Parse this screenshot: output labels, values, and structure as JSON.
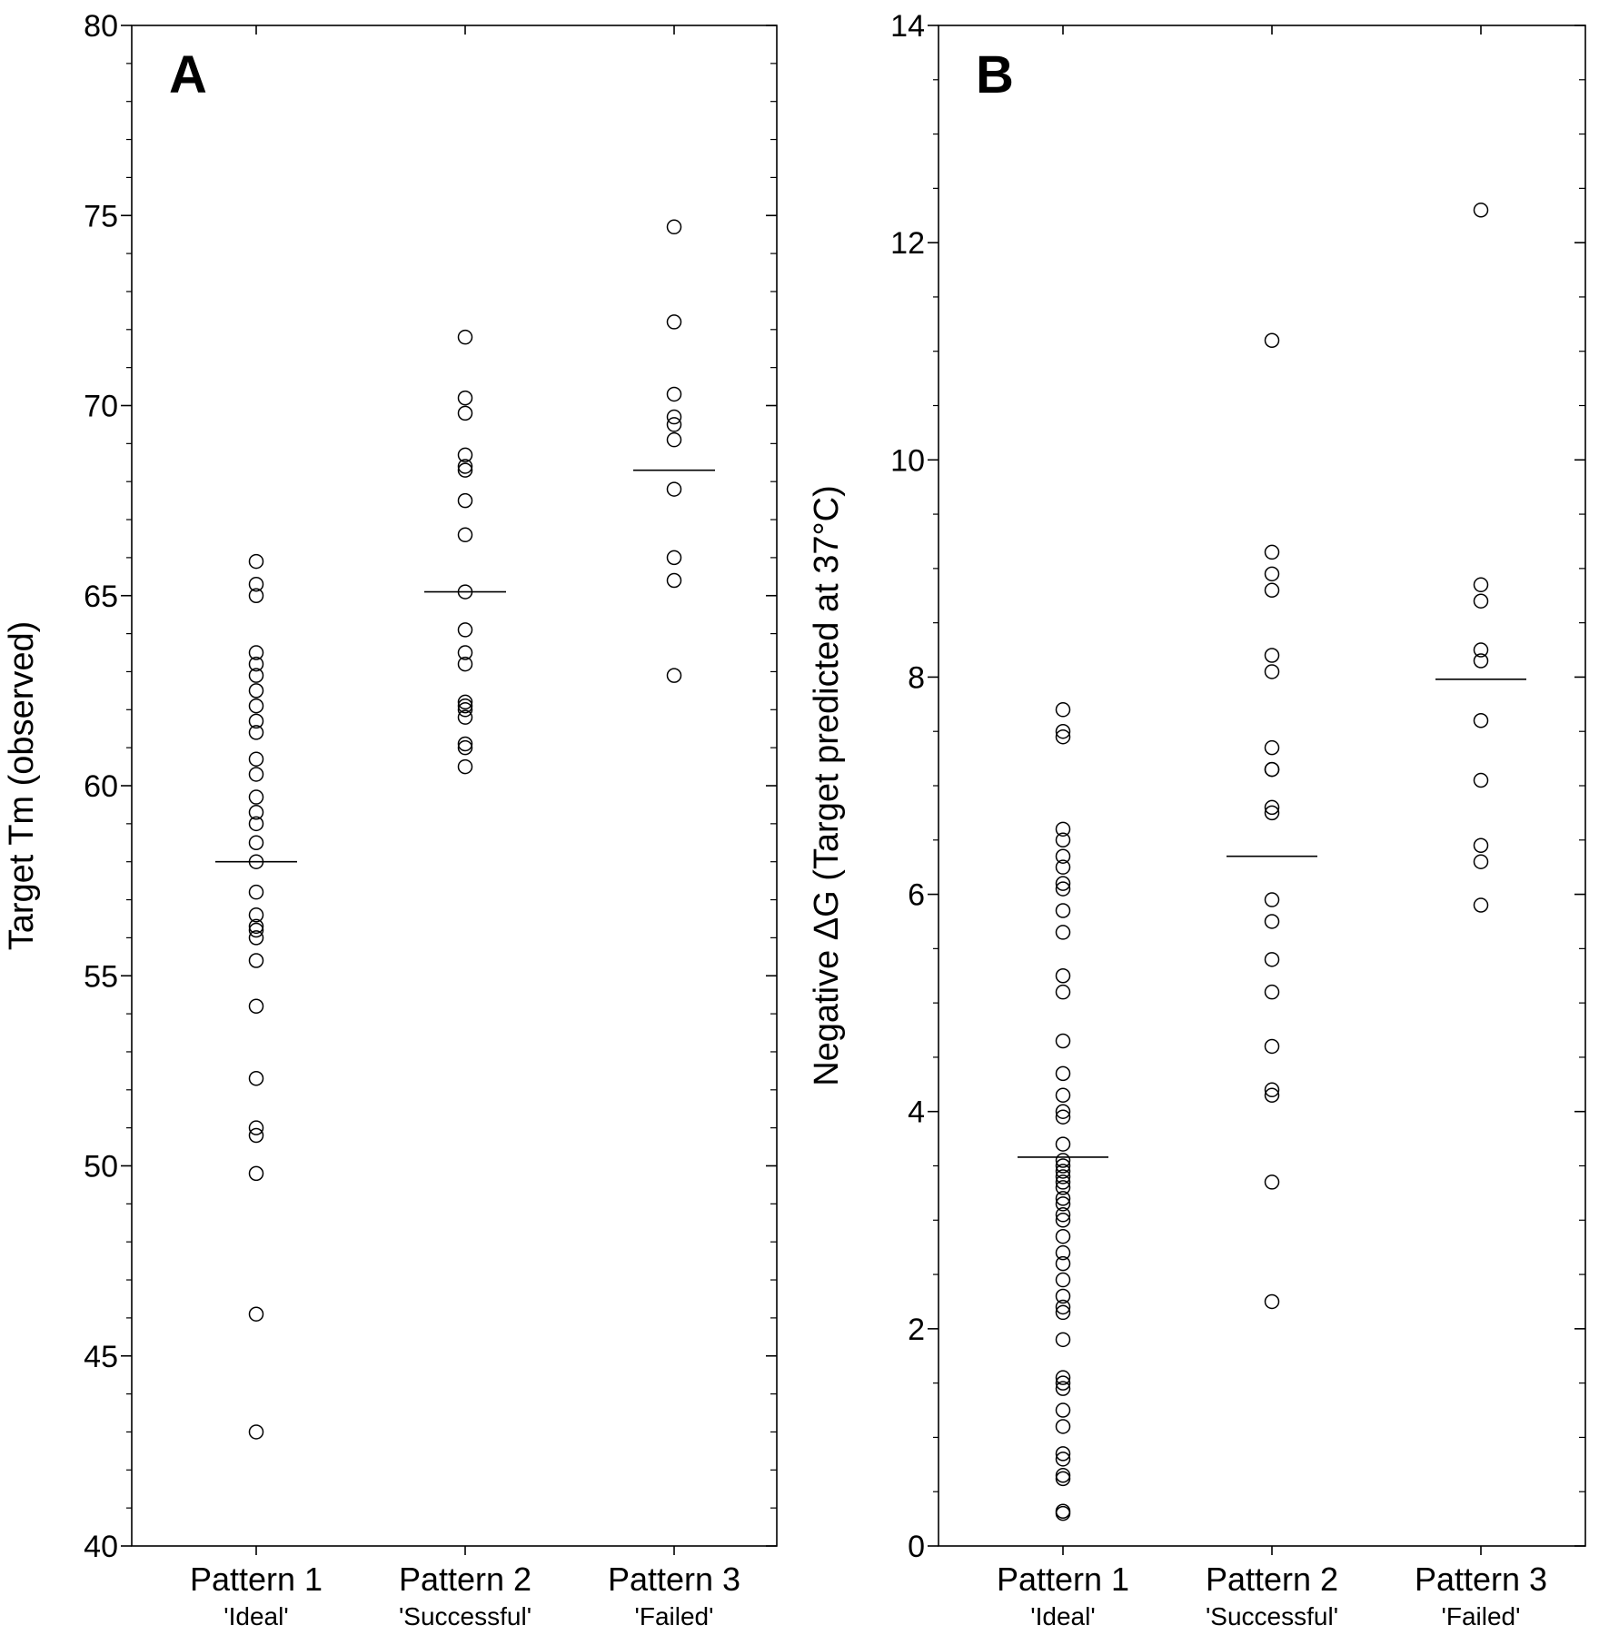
{
  "chart_data": [
    {
      "type": "scatter",
      "panel_label": "A",
      "ylabel": "Target Tm (observed)",
      "ylim": [
        40,
        80
      ],
      "yticks": [
        "40",
        "45",
        "50",
        "55",
        "60",
        "65",
        "70",
        "75",
        "80"
      ],
      "grid": false,
      "categories": [
        {
          "name": "Pattern 1",
          "sub": "'Ideal'"
        },
        {
          "name": "Pattern 2",
          "sub": "'Successful'"
        },
        {
          "name": "Pattern 3",
          "sub": "'Failed'"
        }
      ],
      "series": [
        {
          "values": [
            65.9,
            65.3,
            65.0,
            63.5,
            63.2,
            62.9,
            62.5,
            62.1,
            61.7,
            61.4,
            60.7,
            60.3,
            59.7,
            59.3,
            59.0,
            58.5,
            58.0,
            57.2,
            56.6,
            56.3,
            56.2,
            56.0,
            55.4,
            54.2,
            52.3,
            51.0,
            50.8,
            49.8,
            46.1,
            43.0
          ],
          "mean": 58.0
        },
        {
          "values": [
            71.8,
            70.2,
            69.8,
            68.7,
            68.4,
            68.3,
            67.5,
            66.6,
            65.1,
            64.1,
            63.5,
            63.2,
            62.2,
            62.1,
            62.0,
            61.8,
            61.1,
            61.0,
            60.5
          ],
          "mean": 65.1
        },
        {
          "values": [
            74.7,
            72.2,
            70.3,
            69.7,
            69.5,
            69.1,
            67.8,
            66.0,
            65.4,
            62.9
          ],
          "mean": 68.3
        }
      ]
    },
    {
      "type": "scatter",
      "panel_label": "B",
      "ylabel": "Negative ΔG (Target predicted at 37°C)",
      "ylim": [
        0,
        14
      ],
      "yticks": [
        "0",
        "2",
        "4",
        "6",
        "8",
        "10",
        "12",
        "14"
      ],
      "grid": false,
      "categories": [
        {
          "name": "Pattern 1",
          "sub": "'Ideal'"
        },
        {
          "name": "Pattern 2",
          "sub": "'Successful'"
        },
        {
          "name": "Pattern 3",
          "sub": "'Failed'"
        }
      ],
      "series": [
        {
          "values": [
            7.7,
            7.5,
            7.45,
            6.6,
            6.5,
            6.35,
            6.25,
            6.1,
            6.05,
            5.85,
            5.65,
            5.25,
            5.1,
            4.65,
            4.35,
            4.15,
            4.0,
            3.95,
            3.7,
            3.55,
            3.5,
            3.45,
            3.4,
            3.35,
            3.3,
            3.2,
            3.15,
            3.05,
            3.0,
            2.85,
            2.7,
            2.6,
            2.45,
            2.3,
            2.2,
            2.15,
            1.9,
            1.55,
            1.5,
            1.45,
            1.25,
            1.1,
            0.85,
            0.8,
            0.65,
            0.62,
            0.32,
            0.3
          ],
          "mean": 3.58
        },
        {
          "values": [
            11.1,
            9.15,
            8.95,
            8.8,
            8.2,
            8.05,
            7.35,
            7.15,
            7.15,
            6.8,
            6.75,
            5.95,
            5.75,
            5.4,
            5.1,
            4.6,
            4.2,
            4.15,
            3.35,
            2.25
          ],
          "mean": 6.35
        },
        {
          "values": [
            12.3,
            8.85,
            8.7,
            8.25,
            8.15,
            7.6,
            7.05,
            6.45,
            6.3,
            5.9
          ],
          "mean": 7.98
        }
      ]
    }
  ]
}
